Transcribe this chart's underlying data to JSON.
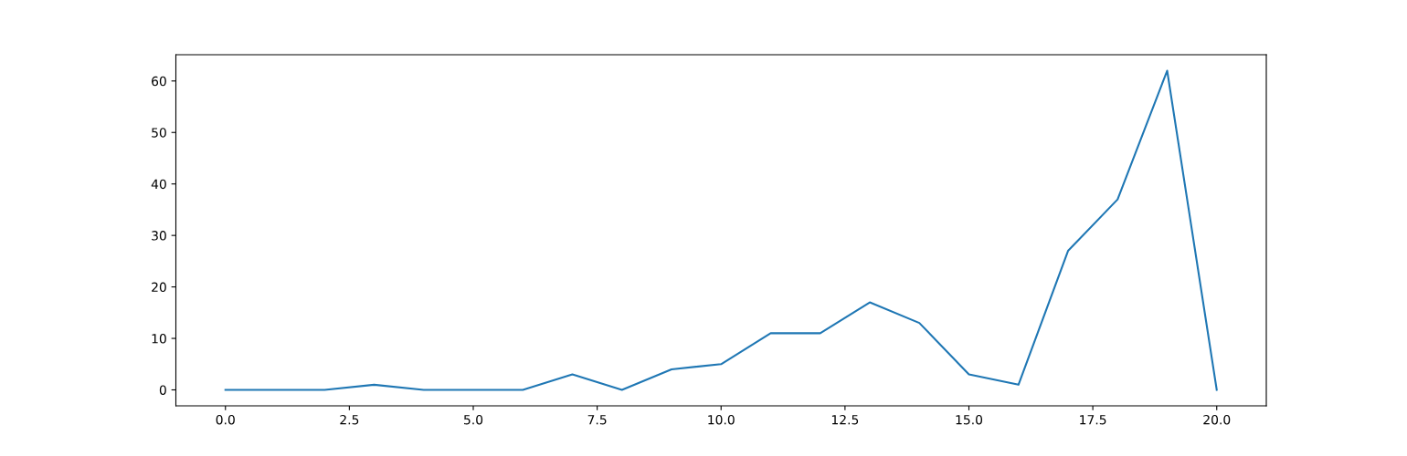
{
  "chart_data": {
    "type": "line",
    "x": [
      0,
      1,
      2,
      3,
      4,
      5,
      6,
      7,
      8,
      9,
      10,
      11,
      12,
      13,
      14,
      15,
      16,
      17,
      18,
      19,
      20
    ],
    "series": [
      {
        "color": "#1f77b4",
        "values": [
          0,
          0,
          0,
          1,
          0,
          0,
          0,
          3,
          0,
          4,
          5,
          11,
          11,
          17,
          13,
          3,
          1,
          27,
          37,
          62,
          0
        ]
      }
    ],
    "xlim": [
      -1,
      21
    ],
    "ylim": [
      -3.1,
      65.1
    ],
    "xticks": [
      {
        "value": 0,
        "label": "0.0"
      },
      {
        "value": 2.5,
        "label": "2.5"
      },
      {
        "value": 5,
        "label": "5.0"
      },
      {
        "value": 7.5,
        "label": "7.5"
      },
      {
        "value": 10,
        "label": "10.0"
      },
      {
        "value": 12.5,
        "label": "12.5"
      },
      {
        "value": 15,
        "label": "15.0"
      },
      {
        "value": 17.5,
        "label": "17.5"
      },
      {
        "value": 20,
        "label": "20.0"
      }
    ],
    "yticks": [
      0,
      10,
      20,
      30,
      40,
      50,
      60
    ]
  }
}
